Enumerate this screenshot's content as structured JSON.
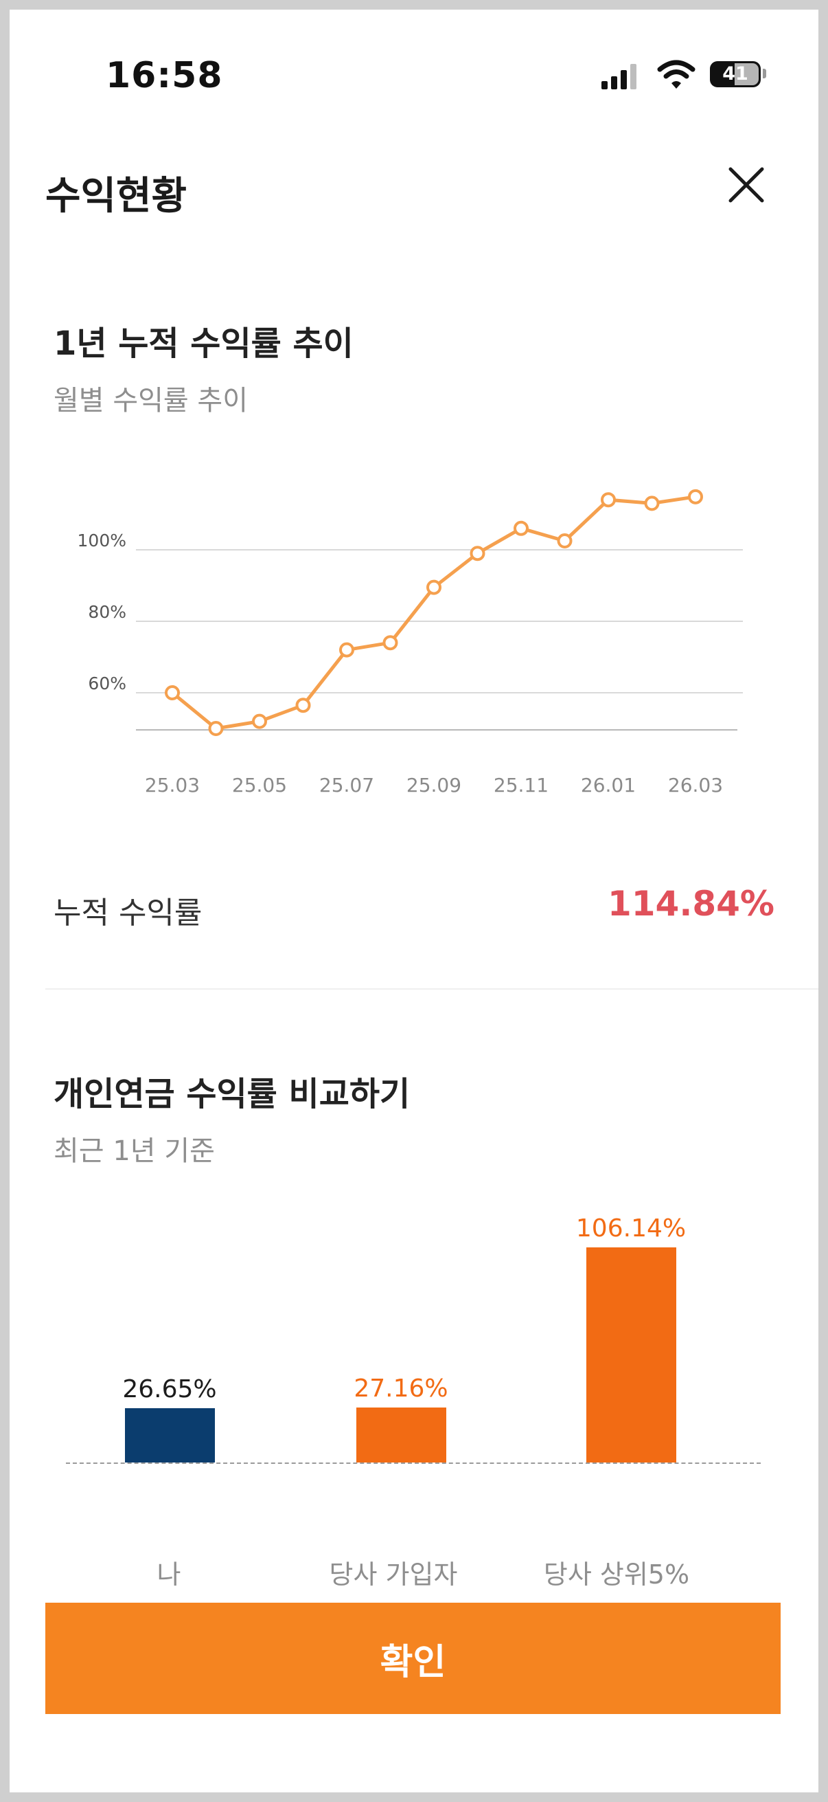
{
  "status_bar": {
    "time": "16:58",
    "battery_level": "41",
    "icons": [
      "signal-icon",
      "wifi-icon",
      "battery-icon"
    ]
  },
  "header": {
    "title": "수익현황",
    "close_icon": "close-icon"
  },
  "trend": {
    "title": "1년 누적 수익률 추이",
    "subtitle": "월별 수익률 추이",
    "cumulative_label": "누적 수익률",
    "cumulative_value": "114.84%"
  },
  "comparison": {
    "title": "개인연금 수익률 비교하기",
    "subtitle": "최근 1년 기준"
  },
  "chart_data": [
    {
      "type": "line",
      "x": [
        "25.03",
        "25.04",
        "25.05",
        "25.06",
        "25.07",
        "25.08",
        "25.09",
        "25.10",
        "25.11",
        "25.12",
        "26.01",
        "26.02",
        "26.03"
      ],
      "x_tick_labels": [
        "25.03",
        "25.05",
        "25.07",
        "25.09",
        "25.11",
        "26.01",
        "26.03"
      ],
      "y_tick_labels": [
        "60%",
        "80%",
        "100%"
      ],
      "y_ticks": [
        60,
        80,
        100
      ],
      "series": [
        {
          "values": [
            60,
            50,
            52,
            56.5,
            72,
            74,
            89.5,
            99,
            106,
            102.5,
            114,
            113,
            114.84
          ]
        }
      ],
      "ylim": [
        47,
        115
      ],
      "grid": true,
      "color": "#f5a04e"
    },
    {
      "type": "bar",
      "categories": [
        "나",
        "당사 가입자",
        "당사 상위5%"
      ],
      "values": [
        26.65,
        27.16,
        106.14
      ],
      "value_labels": [
        "26.65%",
        "27.16%",
        "106.14%"
      ],
      "colors": [
        "#0b3d6e",
        "#f26b14",
        "#f26b14"
      ],
      "label_colors": [
        "#1c1c1c",
        "#f26b14",
        "#f26b14"
      ],
      "ylim": [
        0,
        110
      ]
    }
  ],
  "confirm_button": {
    "label": "확인"
  }
}
